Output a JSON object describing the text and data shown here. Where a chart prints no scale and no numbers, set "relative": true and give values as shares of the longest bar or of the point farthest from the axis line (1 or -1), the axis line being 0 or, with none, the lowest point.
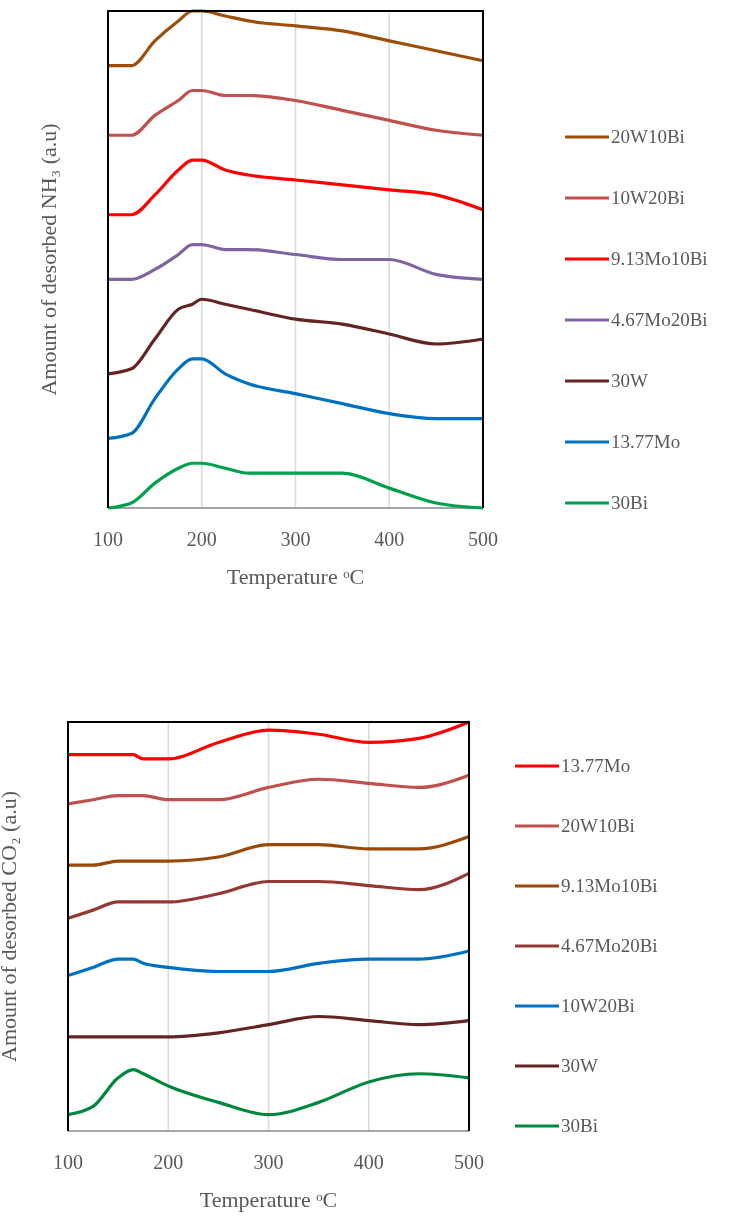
{
  "chart_data": [
    {
      "type": "line",
      "relative": true,
      "xlabel": "Temperature ᵒC",
      "ylabel": "Amount of  desorbed NH₃ (a.u)",
      "x": [
        100,
        125,
        150,
        175,
        190,
        200,
        225,
        250,
        300,
        350,
        400,
        450,
        500
      ],
      "xlim": [
        100,
        500
      ],
      "xticks": [
        100,
        200,
        300,
        400,
        500
      ],
      "grid": "x",
      "legend": "right",
      "series": [
        {
          "name": "20W10Bi",
          "color": "#9c4f08",
          "values": [
            0.89,
            0.89,
            0.94,
            0.98,
            1.0,
            1.0,
            0.99,
            0.98,
            0.97,
            0.96,
            0.94,
            0.92,
            0.9
          ]
        },
        {
          "name": "10W20Bi",
          "color": "#c0504d",
          "values": [
            0.75,
            0.75,
            0.79,
            0.82,
            0.84,
            0.84,
            0.83,
            0.83,
            0.82,
            0.8,
            0.78,
            0.76,
            0.75
          ]
        },
        {
          "name": "9.13Mo10Bi",
          "color": "#ff0000",
          "values": [
            0.59,
            0.59,
            0.63,
            0.68,
            0.7,
            0.7,
            0.68,
            0.67,
            0.66,
            0.65,
            0.64,
            0.63,
            0.6
          ]
        },
        {
          "name": "4.67Mo20Bi",
          "color": "#8064a2",
          "values": [
            0.46,
            0.46,
            0.48,
            0.51,
            0.53,
            0.53,
            0.52,
            0.52,
            0.51,
            0.5,
            0.5,
            0.47,
            0.46
          ]
        },
        {
          "name": "30W",
          "color": "#632523",
          "values": [
            0.27,
            0.28,
            0.34,
            0.4,
            0.41,
            0.42,
            0.41,
            0.4,
            0.38,
            0.37,
            0.35,
            0.33,
            0.34
          ]
        },
        {
          "name": "13.77Mo",
          "color": "#0070c0",
          "values": [
            0.14,
            0.15,
            0.22,
            0.28,
            0.3,
            0.3,
            0.27,
            0.25,
            0.23,
            0.21,
            0.19,
            0.18,
            0.18
          ]
        },
        {
          "name": "30Bi",
          "color": "#00a04c",
          "values": [
            0.0,
            0.01,
            0.05,
            0.08,
            0.09,
            0.09,
            0.08,
            0.07,
            0.07,
            0.07,
            0.04,
            0.01,
            0.0
          ]
        }
      ]
    },
    {
      "type": "line",
      "relative": true,
      "xlabel": "Temperature ᵒC",
      "ylabel": "Amount of desorbed CO₂  (a.u)",
      "x": [
        100,
        125,
        150,
        165,
        175,
        200,
        250,
        300,
        350,
        400,
        450,
        500
      ],
      "xlim": [
        100,
        500
      ],
      "xticks": [
        100,
        200,
        300,
        400,
        500
      ],
      "grid": "x",
      "legend": "right",
      "series": [
        {
          "name": "13.77Mo",
          "color": "#ff0000",
          "values": [
            0.92,
            0.92,
            0.92,
            0.92,
            0.91,
            0.91,
            0.95,
            0.98,
            0.97,
            0.95,
            0.96,
            1.0
          ]
        },
        {
          "name": "20W10Bi",
          "color": "#c0504d",
          "values": [
            0.8,
            0.81,
            0.82,
            0.82,
            0.82,
            0.81,
            0.81,
            0.84,
            0.86,
            0.85,
            0.84,
            0.87
          ]
        },
        {
          "name": "9.13Mo10Bi",
          "color": "#984807",
          "values": [
            0.65,
            0.65,
            0.66,
            0.66,
            0.66,
            0.66,
            0.67,
            0.7,
            0.7,
            0.69,
            0.69,
            0.72
          ]
        },
        {
          "name": "4.67Mo20Bi",
          "color": "#953735",
          "values": [
            0.52,
            0.54,
            0.56,
            0.56,
            0.56,
            0.56,
            0.58,
            0.61,
            0.61,
            0.6,
            0.59,
            0.63
          ]
        },
        {
          "name": "10W20Bi",
          "color": "#0070c0",
          "values": [
            0.38,
            0.4,
            0.42,
            0.42,
            0.41,
            0.4,
            0.39,
            0.39,
            0.41,
            0.42,
            0.42,
            0.44
          ]
        },
        {
          "name": "30W",
          "color": "#632523",
          "values": [
            0.23,
            0.23,
            0.23,
            0.23,
            0.23,
            0.23,
            0.24,
            0.26,
            0.28,
            0.27,
            0.26,
            0.27
          ]
        },
        {
          "name": "30Bi",
          "color": "#00873e",
          "values": [
            0.04,
            0.06,
            0.13,
            0.15,
            0.14,
            0.11,
            0.07,
            0.04,
            0.07,
            0.12,
            0.14,
            0.13
          ]
        }
      ]
    }
  ]
}
